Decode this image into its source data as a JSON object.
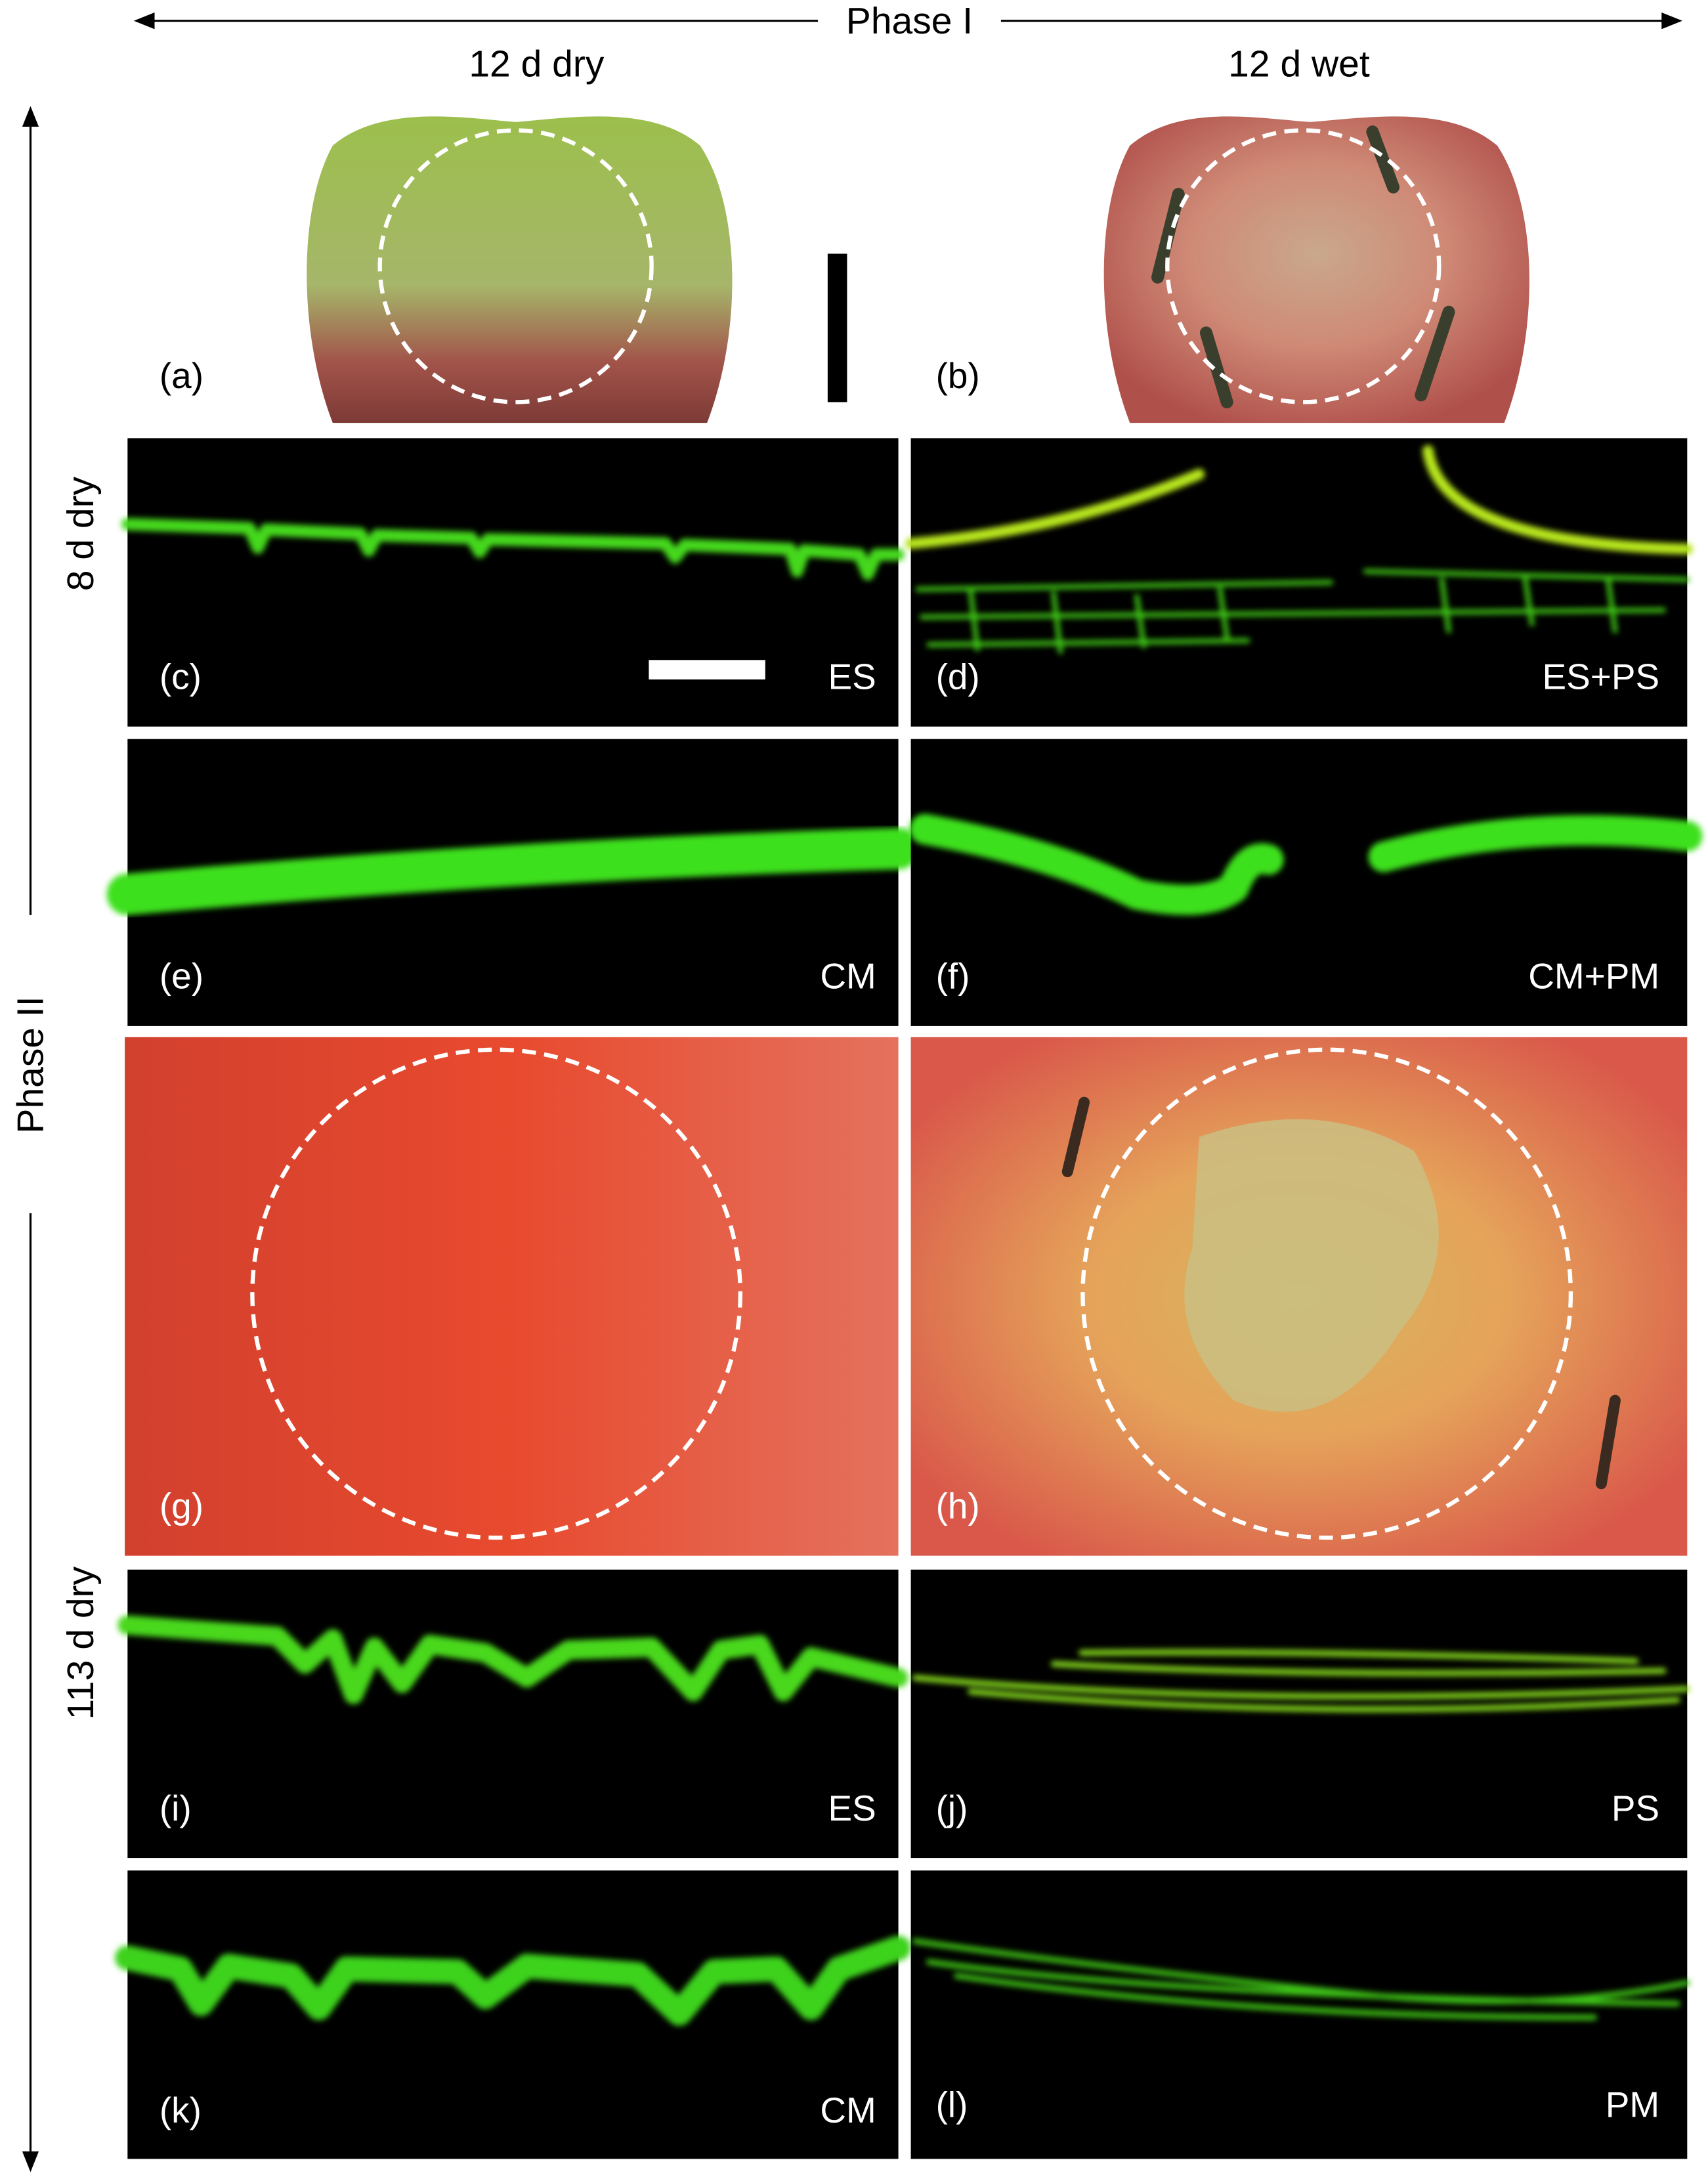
{
  "header": {
    "phase_1": "Phase I",
    "col_left": "12 d dry",
    "col_right": "12 d wet",
    "phase_2": "Phase II",
    "row_top": "8 d dry",
    "row_bottom": "113 d dry"
  },
  "panels": [
    {
      "label": "(a)"
    },
    {
      "label": "(b)"
    },
    {
      "label": "(c)",
      "tag": "ES"
    },
    {
      "label": "(d)",
      "tag": "ES+PS"
    },
    {
      "label": "(e)",
      "tag": "CM"
    },
    {
      "label": "(f)",
      "tag": "CM+PM"
    },
    {
      "label": "(g)"
    },
    {
      "label": "(h)"
    },
    {
      "label": "(i)",
      "tag": "ES"
    },
    {
      "label": "(j)",
      "tag": "PS"
    },
    {
      "label": "(k)",
      "tag": "CM"
    },
    {
      "label": "(l)",
      "tag": "PM"
    }
  ]
}
